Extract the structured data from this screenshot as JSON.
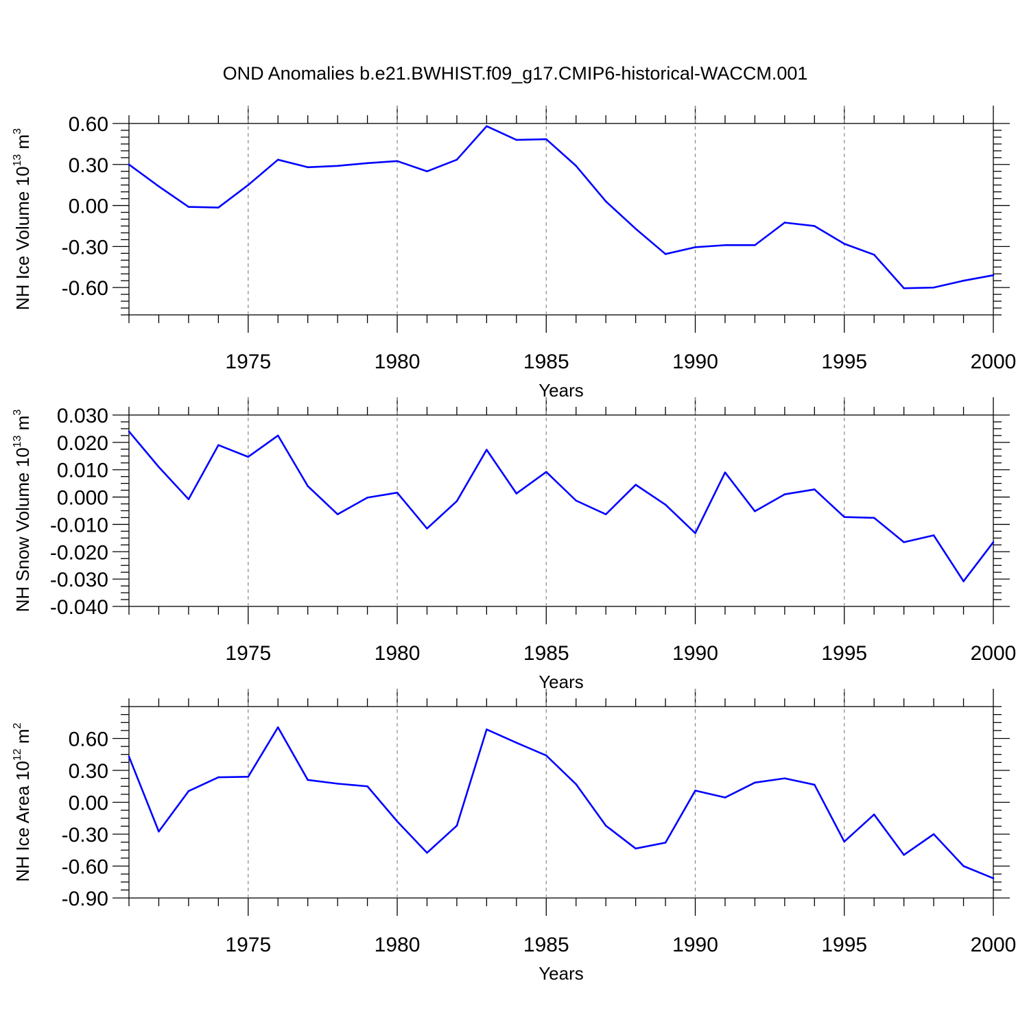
{
  "title": "OND Anomalies b.e21.BWHIST.f09_g17.CMIP6-historical-WACCM.001",
  "chart_data": [
    {
      "type": "line",
      "ylabel_main": "NH Ice Volume 10",
      "ylabel_exp": "13",
      "ylabel_unit": " m",
      "ylabel_unit_exp": "3",
      "xlabel": "Years",
      "xlim": [
        1971,
        2000
      ],
      "ylim": [
        -0.8,
        0.6
      ],
      "y_ticks": [
        0.6,
        0.3,
        0.0,
        -0.3,
        -0.6
      ],
      "y_tick_labels": [
        "0.60",
        "0.30",
        "0.00",
        "-0.30",
        "-0.60"
      ],
      "x_ticks": [
        1975,
        1980,
        1985,
        1990,
        1995,
        2000
      ],
      "x_tick_labels": [
        "1975",
        "1980",
        "1985",
        "1990",
        "1995",
        "2000"
      ],
      "series": [
        {
          "name": "NH Ice Volume",
          "color": "#0000ff",
          "x": [
            1971,
            1972,
            1973,
            1974,
            1975,
            1976,
            1977,
            1978,
            1979,
            1980,
            1981,
            1982,
            1983,
            1984,
            1985,
            1986,
            1987,
            1988,
            1989,
            1990,
            1991,
            1992,
            1993,
            1994,
            1995,
            1996,
            1997,
            1998,
            1999,
            2000
          ],
          "y": [
            0.3,
            0.14,
            -0.01,
            -0.015,
            0.15,
            0.335,
            0.28,
            0.29,
            0.31,
            0.325,
            0.25,
            0.335,
            0.58,
            0.48,
            0.485,
            0.29,
            0.03,
            -0.17,
            -0.355,
            -0.305,
            -0.29,
            -0.29,
            -0.125,
            -0.15,
            -0.28,
            -0.36,
            -0.605,
            -0.6,
            -0.55,
            -0.51
          ]
        }
      ]
    },
    {
      "type": "line",
      "ylabel_main": "NH Snow Volume 10",
      "ylabel_exp": "13",
      "ylabel_unit": " m",
      "ylabel_unit_exp": "3",
      "xlabel": "Years",
      "xlim": [
        1971,
        2000
      ],
      "ylim": [
        -0.04,
        0.03
      ],
      "y_ticks": [
        0.03,
        0.02,
        0.01,
        0.0,
        -0.01,
        -0.02,
        -0.03,
        -0.04
      ],
      "y_tick_labels": [
        "0.030",
        "0.020",
        "0.010",
        "0.000",
        "-0.010",
        "-0.020",
        "-0.030",
        "-0.040"
      ],
      "x_ticks": [
        1975,
        1980,
        1985,
        1990,
        1995,
        2000
      ],
      "x_tick_labels": [
        "1975",
        "1980",
        "1985",
        "1990",
        "1995",
        "2000"
      ],
      "series": [
        {
          "name": "NH Snow Volume",
          "color": "#0000ff",
          "x": [
            1971,
            1972,
            1973,
            1974,
            1975,
            1976,
            1977,
            1978,
            1979,
            1980,
            1981,
            1982,
            1983,
            1984,
            1985,
            1986,
            1987,
            1988,
            1989,
            1990,
            1991,
            1992,
            1993,
            1994,
            1995,
            1996,
            1997,
            1998,
            1999,
            2000
          ],
          "y": [
            0.024,
            0.011,
            -0.0008,
            0.019,
            0.0147,
            0.0225,
            0.004,
            -0.0063,
            -0.0002,
            0.0016,
            -0.0115,
            -0.0015,
            0.0173,
            0.0013,
            0.0092,
            -0.0013,
            -0.0063,
            0.0045,
            -0.0028,
            -0.0132,
            0.009,
            -0.0052,
            0.001,
            0.0028,
            -0.0073,
            -0.0076,
            -0.0165,
            -0.014,
            -0.0308,
            -0.0165
          ]
        }
      ]
    },
    {
      "type": "line",
      "ylabel_main": "NH Ice Area 10",
      "ylabel_exp": "12",
      "ylabel_unit": " m",
      "ylabel_unit_exp": "2",
      "xlabel": "Years",
      "xlim": [
        1971,
        2000
      ],
      "ylim": [
        -0.9,
        0.9
      ],
      "y_ticks": [
        0.6,
        0.3,
        0.0,
        -0.3,
        -0.6,
        -0.9
      ],
      "y_tick_labels": [
        "0.60",
        "0.30",
        "0.00",
        "-0.30",
        "-0.60",
        "-0.90"
      ],
      "x_ticks": [
        1975,
        1980,
        1985,
        1990,
        1995,
        2000
      ],
      "x_tick_labels": [
        "1975",
        "1980",
        "1985",
        "1990",
        "1995",
        "2000"
      ],
      "series": [
        {
          "name": "NH Ice Area",
          "color": "#0000ff",
          "x": [
            1971,
            1972,
            1973,
            1974,
            1975,
            1976,
            1977,
            1978,
            1979,
            1980,
            1981,
            1982,
            1983,
            1984,
            1985,
            1986,
            1987,
            1988,
            1989,
            1990,
            1991,
            1992,
            1993,
            1994,
            1995,
            1996,
            1997,
            1998,
            1999,
            2000
          ],
          "y": [
            0.43,
            -0.275,
            0.105,
            0.235,
            0.24,
            0.705,
            0.21,
            0.175,
            0.15,
            -0.18,
            -0.475,
            -0.22,
            0.685,
            0.56,
            0.44,
            0.17,
            -0.22,
            -0.435,
            -0.38,
            0.11,
            0.045,
            0.185,
            0.225,
            0.165,
            -0.37,
            -0.115,
            -0.495,
            -0.3,
            -0.6,
            -0.715
          ]
        }
      ]
    }
  ]
}
